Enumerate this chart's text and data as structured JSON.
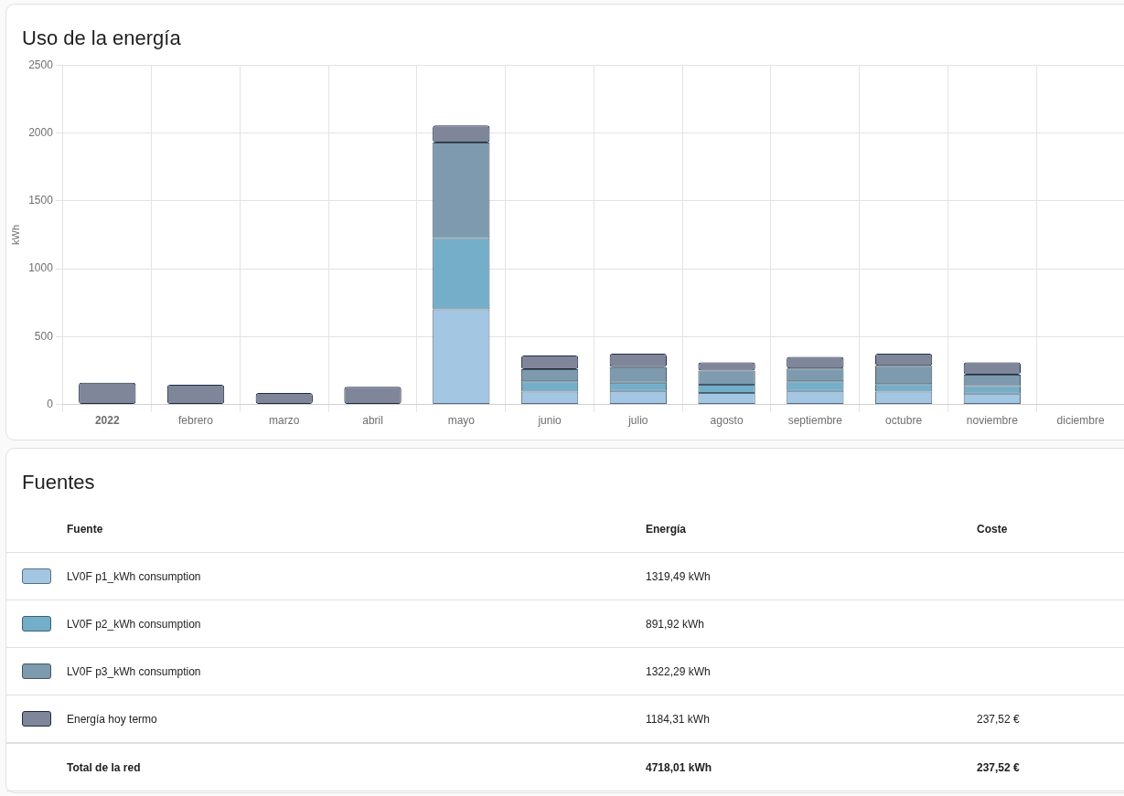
{
  "chart_data": {
    "type": "bar",
    "title": "Uso de la energía",
    "ylabel": "kWh",
    "categories": [
      "2022",
      "febrero",
      "marzo",
      "abril",
      "mayo",
      "junio",
      "julio",
      "agosto",
      "septiembre",
      "octubre",
      "noviembre",
      "diciembre"
    ],
    "series": [
      {
        "name": "LV0F p1_kWh consumption",
        "color": "#a3c6e3",
        "values": [
          null,
          null,
          null,
          null,
          700,
          95,
          100,
          85,
          100,
          95,
          80,
          null
        ]
      },
      {
        "name": "LV0F p2_kWh consumption",
        "color": "#74aec9",
        "values": [
          null,
          null,
          null,
          null,
          525,
          75,
          60,
          60,
          70,
          55,
          55,
          null
        ]
      },
      {
        "name": "LV0F p3_kWh consumption",
        "color": "#7d9aae",
        "values": [
          null,
          null,
          null,
          null,
          705,
          90,
          115,
          105,
          95,
          135,
          85,
          null
        ]
      },
      {
        "name": "Energía hoy termo",
        "color": "#7f8699",
        "values": [
          160,
          145,
          85,
          130,
          125,
          100,
          100,
          60,
          85,
          90,
          90,
          null
        ]
      }
    ],
    "stacked": true,
    "ylim": [
      0,
      2500
    ],
    "yticks": [
      0,
      500,
      1000,
      1500,
      2000,
      2500
    ],
    "grid": true,
    "legend": "bottom",
    "legend_title": "Fuentes",
    "annotations": [
      "Fuente",
      "Energía",
      "Coste",
      "1319,49 kWh",
      "891,92 kWh",
      "1322,29 kWh",
      "1184,31 kWh",
      "237,52 €",
      "Total de la red",
      "4718,01 kWh",
      "237,52 €"
    ]
  }
}
